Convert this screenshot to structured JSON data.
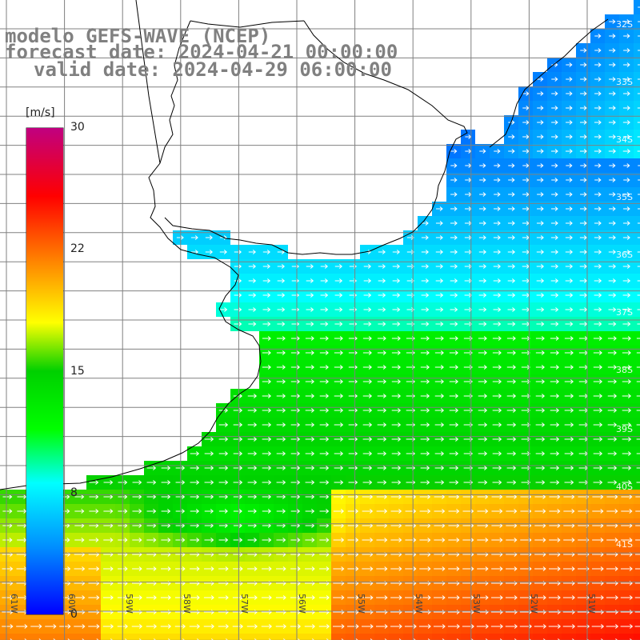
{
  "title": {
    "line1": "modelo GEFS-WAVE (NCEP)",
    "line2": "forecast date: 2024-04-21 00:00:00",
    "line3": "valid date: 2024-04-29 06:00:00"
  },
  "colorbar": {
    "unit": "[m/s]",
    "ticks": [
      "30",
      "22",
      "15",
      "8",
      "0"
    ],
    "tick_values": [
      30,
      22,
      15,
      8,
      0
    ],
    "min": 0,
    "max": 30,
    "colors": [
      "#0000ff",
      "#0090ff",
      "#00ffff",
      "#00ff00",
      "#ffff00",
      "#ff8000",
      "#ff0000",
      "#c00080"
    ]
  },
  "map": {
    "lat_labels": [
      "32S",
      "33S",
      "34S",
      "35S",
      "36S",
      "37S",
      "38S",
      "39S",
      "40S",
      "41S"
    ],
    "lon_labels": [
      "61W",
      "60W",
      "59W",
      "58W",
      "57W",
      "56W",
      "55W",
      "54W",
      "53W",
      "52W",
      "51W"
    ],
    "land_color": "#ffffff",
    "coast_color": "#000000",
    "grid_color": "#808080",
    "arrow_color": "#ffffff"
  }
}
